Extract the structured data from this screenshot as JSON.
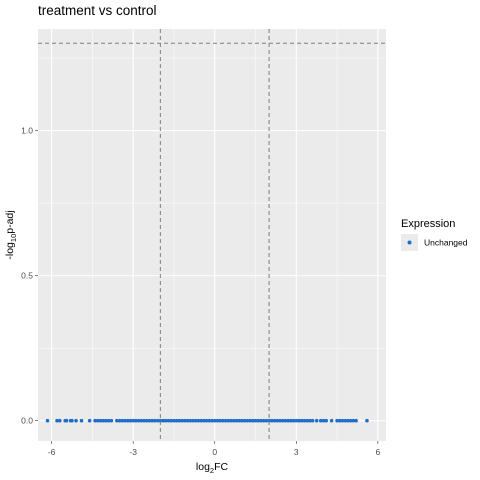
{
  "chart_data": {
    "type": "scatter",
    "title": "treatment vs control",
    "xlabel": "log2FC",
    "ylabel": "-log10p-adj",
    "xlim": [
      -6.5,
      6.3
    ],
    "ylim": [
      -0.07,
      1.35
    ],
    "x_ticks": [
      -6,
      -3,
      0,
      3,
      6
    ],
    "y_ticks": [
      0.0,
      0.5,
      1.0
    ],
    "x_tick_labels": [
      "-6",
      "-3",
      "0",
      "3",
      "6"
    ],
    "y_tick_labels": [
      "0.0",
      "0.5",
      "1.0"
    ],
    "reference_lines": {
      "vertical": [
        -2,
        2
      ],
      "horizontal": [
        1.30103
      ]
    },
    "legend": {
      "title": "Expression",
      "placement": "right",
      "entries": [
        {
          "label": "Unchanged",
          "color": "#1f6fc6"
        }
      ]
    },
    "series": [
      {
        "name": "Unchanged",
        "color": "#1f6fc6",
        "points": [
          [
            -6.15,
            0.0
          ],
          [
            -5.8,
            0.0
          ],
          [
            -5.7,
            0.0
          ],
          [
            -5.5,
            0.0
          ],
          [
            -5.45,
            0.0
          ],
          [
            -5.3,
            0.0
          ],
          [
            -5.25,
            0.0
          ],
          [
            -5.1,
            0.0
          ],
          [
            -4.9,
            0.0
          ],
          [
            -4.6,
            0.0
          ],
          [
            -4.4,
            0.0
          ],
          [
            -4.3,
            0.0
          ],
          [
            -4.2,
            0.0
          ],
          [
            -4.1,
            0.0
          ],
          [
            -4.0,
            0.0
          ],
          [
            -3.9,
            0.0
          ],
          [
            -3.8,
            0.0
          ],
          [
            -3.6,
            0.0
          ],
          [
            -3.5,
            0.0
          ],
          [
            -3.4,
            0.0
          ],
          [
            -3.3,
            0.0
          ],
          [
            -3.2,
            0.0
          ],
          [
            -3.1,
            0.0
          ],
          [
            -3.0,
            0.0
          ],
          [
            -2.9,
            0.0
          ],
          [
            -2.8,
            0.0
          ],
          [
            -2.7,
            0.0
          ],
          [
            -2.6,
            0.0
          ],
          [
            -2.5,
            0.0
          ],
          [
            -2.4,
            0.0
          ],
          [
            -2.3,
            0.0
          ],
          [
            -2.2,
            0.0
          ],
          [
            -2.1,
            0.0
          ],
          [
            -2.0,
            0.0
          ],
          [
            -1.9,
            0.0
          ],
          [
            -1.8,
            0.0
          ],
          [
            -1.7,
            0.0
          ],
          [
            -1.6,
            0.0
          ],
          [
            -1.5,
            0.0
          ],
          [
            -1.4,
            0.0
          ],
          [
            -1.3,
            0.0
          ],
          [
            -1.2,
            0.0
          ],
          [
            -1.1,
            0.0
          ],
          [
            -1.0,
            0.0
          ],
          [
            -0.9,
            0.0
          ],
          [
            -0.8,
            0.0
          ],
          [
            -0.7,
            0.0
          ],
          [
            -0.6,
            0.0
          ],
          [
            -0.5,
            0.0
          ],
          [
            -0.4,
            0.0
          ],
          [
            -0.3,
            0.0
          ],
          [
            -0.2,
            0.0
          ],
          [
            -0.1,
            0.0
          ],
          [
            0.0,
            0.0
          ],
          [
            0.1,
            0.0
          ],
          [
            0.2,
            0.0
          ],
          [
            0.3,
            0.0
          ],
          [
            0.4,
            0.0
          ],
          [
            0.5,
            0.0
          ],
          [
            0.6,
            0.0
          ],
          [
            0.7,
            0.0
          ],
          [
            0.8,
            0.0
          ],
          [
            0.9,
            0.0
          ],
          [
            1.0,
            0.0
          ],
          [
            1.1,
            0.0
          ],
          [
            1.2,
            0.0
          ],
          [
            1.3,
            0.0
          ],
          [
            1.4,
            0.0
          ],
          [
            1.5,
            0.0
          ],
          [
            1.6,
            0.0
          ],
          [
            1.7,
            0.0
          ],
          [
            1.8,
            0.0
          ],
          [
            1.9,
            0.0
          ],
          [
            2.0,
            0.0
          ],
          [
            2.1,
            0.0
          ],
          [
            2.2,
            0.0
          ],
          [
            2.3,
            0.0
          ],
          [
            2.4,
            0.0
          ],
          [
            2.5,
            0.0
          ],
          [
            2.6,
            0.0
          ],
          [
            2.7,
            0.0
          ],
          [
            2.8,
            0.0
          ],
          [
            2.9,
            0.0
          ],
          [
            3.0,
            0.0
          ],
          [
            3.1,
            0.0
          ],
          [
            3.2,
            0.0
          ],
          [
            3.3,
            0.0
          ],
          [
            3.4,
            0.0
          ],
          [
            3.5,
            0.0
          ],
          [
            3.6,
            0.0
          ],
          [
            3.75,
            0.0
          ],
          [
            3.9,
            0.0
          ],
          [
            4.0,
            0.0
          ],
          [
            4.1,
            0.0
          ],
          [
            4.3,
            0.0
          ],
          [
            4.5,
            0.0
          ],
          [
            4.6,
            0.0
          ],
          [
            4.7,
            0.0
          ],
          [
            4.8,
            0.0
          ],
          [
            4.9,
            0.0
          ],
          [
            5.0,
            0.0
          ],
          [
            5.1,
            0.0
          ],
          [
            5.2,
            0.0
          ],
          [
            5.6,
            0.0
          ]
        ]
      }
    ],
    "panel_background": "#ebebeb",
    "grid": true,
    "grid_color": "#ffffff",
    "reference_line_color": "#7f7f7f",
    "reference_line_style": "dashed"
  }
}
